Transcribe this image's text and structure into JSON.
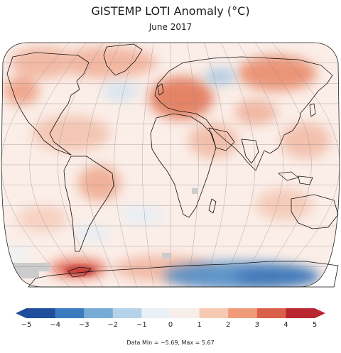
{
  "title": "GISTEMP LOTI Anomaly (°C)",
  "subtitle": "June 2017",
  "footnote": "Data Min = −5.69, Max = 5.67",
  "colorbar": {
    "ticks": [
      "−5",
      "−4",
      "−3",
      "−2",
      "−1",
      "0",
      "1",
      "2",
      "3",
      "4",
      "5"
    ],
    "min": -5,
    "max": 5,
    "colors": [
      "#1f4e9b",
      "#3a7bc0",
      "#78abd5",
      "#b6d2e8",
      "#e9f1f7",
      "#f7eee9",
      "#f6c9b3",
      "#ef9b7a",
      "#d9604b",
      "#b9262f"
    ]
  },
  "map": {
    "projection": "Robinson",
    "ocean_color": "#fbeee8",
    "missing_color": "#cccccc",
    "graticule": true
  }
}
